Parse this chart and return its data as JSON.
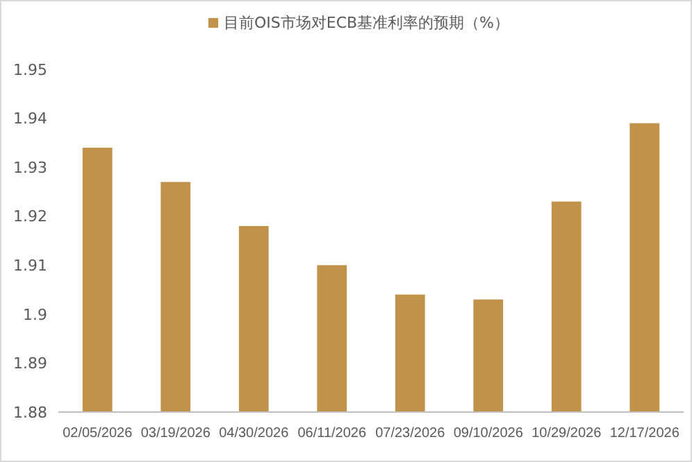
{
  "chart_data": {
    "type": "bar",
    "categories": [
      "02/05/2026",
      "03/19/2026",
      "04/30/2026",
      "06/11/2026",
      "07/23/2026",
      "09/10/2026",
      "10/29/2026",
      "12/17/2026"
    ],
    "series": [
      {
        "name": "目前OIS市场对ECB基准利率的预期（%）",
        "color": "#c0924a",
        "values": [
          1.934,
          1.927,
          1.918,
          1.91,
          1.904,
          1.903,
          1.923,
          1.939
        ]
      }
    ],
    "ylim": [
      1.88,
      1.95
    ],
    "yticks": [
      1.88,
      1.89,
      {
        "value": 1.9,
        "label": "1.9"
      },
      1.91,
      1.92,
      1.93,
      1.94,
      1.95
    ],
    "grid": false,
    "legend": "top"
  }
}
